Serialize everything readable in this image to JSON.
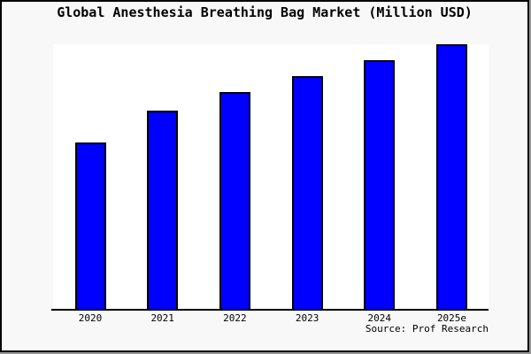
{
  "chart_data": {
    "type": "bar",
    "title": "Global Anesthesia Breathing Bag Market (Million USD)",
    "categories": [
      "2020",
      "2021",
      "2022",
      "2023",
      "2024",
      "2025e"
    ],
    "values": [
      63,
      75,
      82,
      88,
      94,
      100
    ],
    "values_unit": "percent of tallest bar (no y-axis scale shown)",
    "xlabel": "",
    "ylabel": "",
    "ylim": [
      0,
      100
    ],
    "grid": false,
    "legend": false,
    "y_axis_ticks_visible": false,
    "source": "Source: Prof Research"
  },
  "colors": {
    "figure_background": "#f8f8f8",
    "plot_background": "#ffffff",
    "bar_fill": "#0000ff",
    "bar_edge": "#000000",
    "frame": "#000000",
    "edge_shadow": "#9a9a9a",
    "text": "#000000"
  }
}
